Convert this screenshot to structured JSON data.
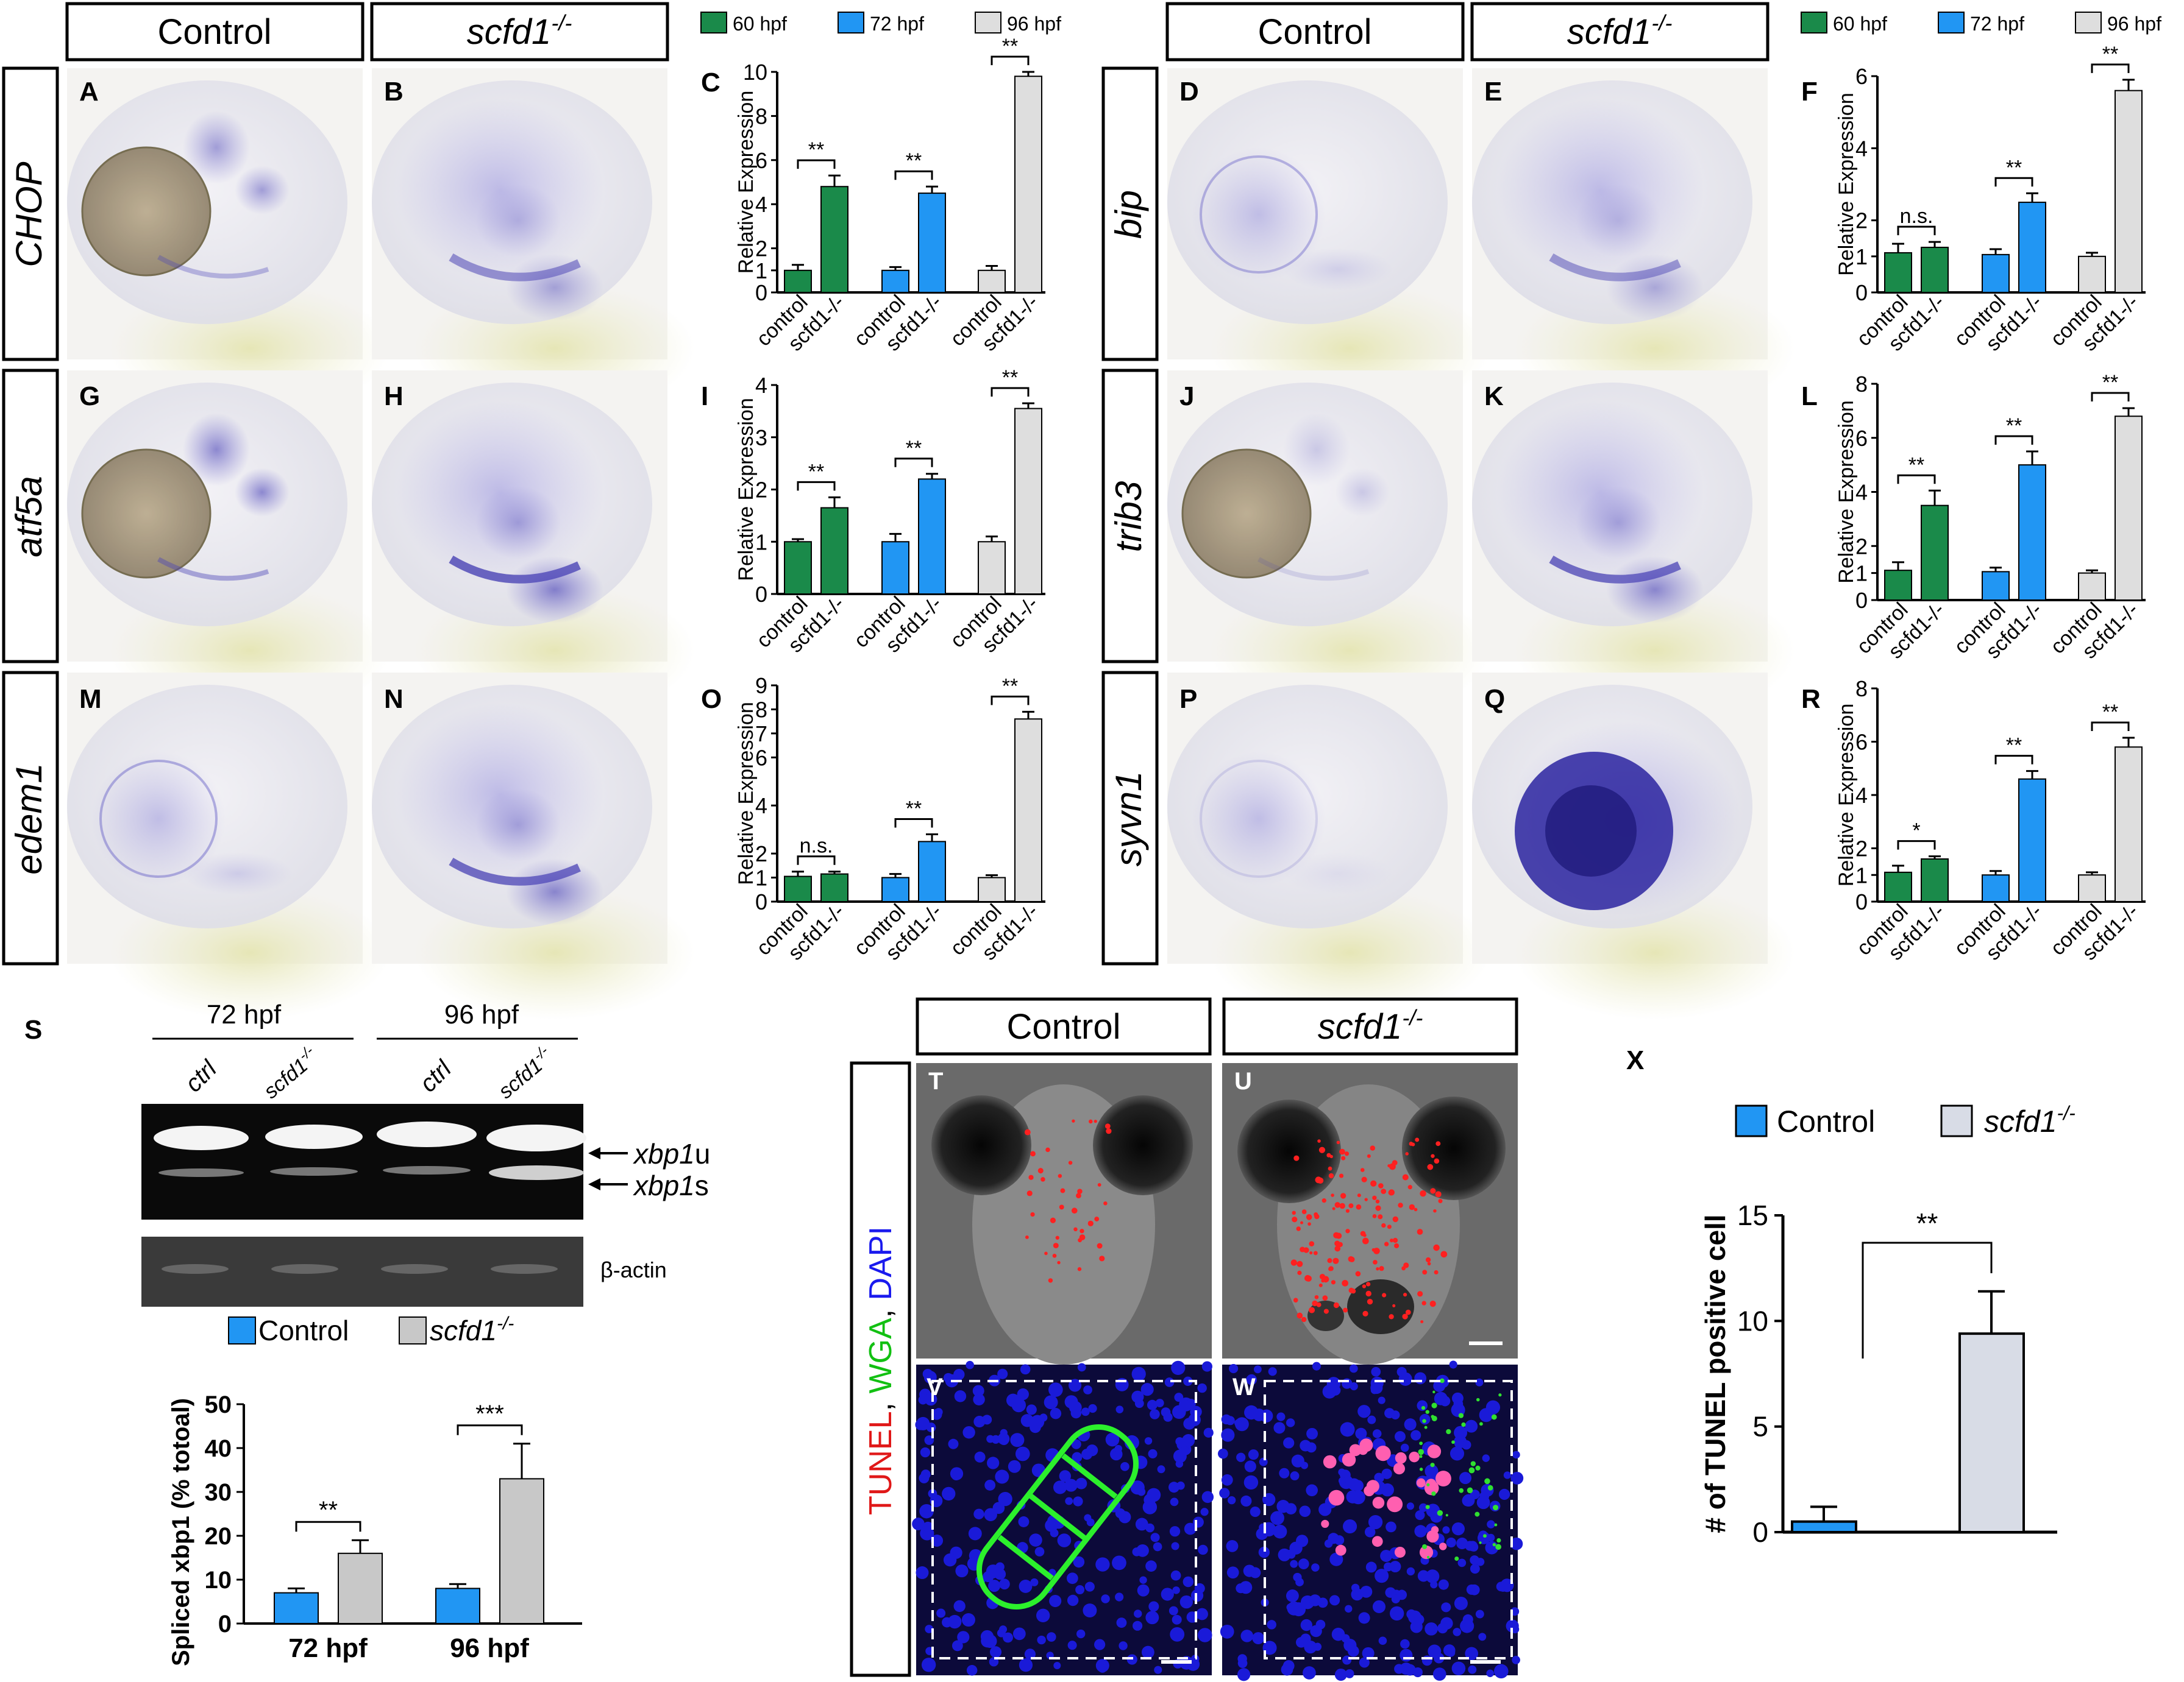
{
  "top_headers": {
    "control": "Control",
    "mutant": "scfd1",
    "sup": "-/-"
  },
  "legend_top": {
    "items": [
      {
        "label": "60 hpf",
        "color": "#1a8a4a"
      },
      {
        "label": "72 hpf",
        "color": "#2196f3"
      },
      {
        "label": "96 hpf",
        "color": "#dedede"
      }
    ]
  },
  "genes": {
    "chop": "CHOP",
    "bip": "bip",
    "atf5a": "atf5a",
    "trib3": "trib3",
    "edem1": "edem1",
    "syvn1": "syvn1"
  },
  "panel_letters": {
    "a": "A",
    "b": "B",
    "c": "C",
    "d": "D",
    "e": "E",
    "f": "F",
    "g": "G",
    "h": "H",
    "i": "I",
    "j": "J",
    "k": "K",
    "l": "L",
    "m": "M",
    "n": "N",
    "o": "O",
    "p": "P",
    "q": "Q",
    "r": "R",
    "s": "S",
    "t": "T",
    "u": "U",
    "v": "V",
    "w": "W",
    "x": "X"
  },
  "ylabel_rel": "Relative Expression",
  "xticks": [
    "control",
    "scfd1-/-",
    "control",
    "scfd1-/-",
    "control",
    "scfd1-/-"
  ],
  "gel": {
    "stage_72": "72 hpf",
    "stage_96": "96 hpf",
    "ctrl": "ctrl",
    "mutant": "scfd1",
    "sup": "-/-",
    "xbp1u": "xbp1",
    "xbp1u_suffix": "u",
    "xbp1s": "xbp1",
    "xbp1s_suffix": "s",
    "actin": "β-actin"
  },
  "legend_s": {
    "control": "Control",
    "mutant": "scfd1",
    "sup": "-/-"
  },
  "chart_data": [
    {
      "type": "bar",
      "panel": "C",
      "ylabel": "Relative Expression",
      "ylim": [
        0,
        10
      ],
      "yticks": [
        0,
        1,
        2,
        4,
        6,
        8,
        10
      ],
      "values": [
        1.0,
        4.8,
        1.0,
        4.5,
        1.0,
        9.8
      ],
      "errors": [
        0.25,
        0.5,
        0.15,
        0.3,
        0.2,
        0.2
      ],
      "significance": [
        "**",
        "**",
        "**"
      ]
    },
    {
      "type": "bar",
      "panel": "F",
      "ylabel": "Relative Expression",
      "ylim": [
        0,
        6
      ],
      "yticks": [
        0,
        1,
        2,
        4,
        6
      ],
      "values": [
        1.1,
        1.25,
        1.05,
        2.5,
        1.0,
        5.6
      ],
      "errors": [
        0.25,
        0.15,
        0.15,
        0.25,
        0.1,
        0.3
      ],
      "significance": [
        "n.s.",
        "**",
        "**"
      ]
    },
    {
      "type": "bar",
      "panel": "I",
      "ylabel": "Relative Expression",
      "ylim": [
        0,
        4
      ],
      "yticks": [
        0,
        1,
        2,
        3,
        4
      ],
      "values": [
        1.0,
        1.65,
        1.0,
        2.2,
        1.0,
        3.55
      ],
      "errors": [
        0.05,
        0.2,
        0.15,
        0.1,
        0.1,
        0.1
      ],
      "significance": [
        "**",
        "**",
        "**"
      ]
    },
    {
      "type": "bar",
      "panel": "L",
      "ylabel": "Relative Expression",
      "ylim": [
        0,
        8
      ],
      "yticks": [
        0,
        1,
        2,
        4,
        6,
        8
      ],
      "values": [
        1.1,
        3.5,
        1.05,
        5.0,
        1.0,
        6.8
      ],
      "errors": [
        0.3,
        0.55,
        0.15,
        0.5,
        0.1,
        0.3
      ],
      "significance": [
        "**",
        "**",
        "**"
      ]
    },
    {
      "type": "bar",
      "panel": "O",
      "ylabel": "Relative Expression",
      "ylim": [
        0,
        9
      ],
      "yticks": [
        0,
        1,
        2,
        4,
        6,
        7,
        8,
        9
      ],
      "values": [
        1.05,
        1.15,
        1.0,
        2.5,
        1.0,
        7.6
      ],
      "errors": [
        0.2,
        0.1,
        0.15,
        0.3,
        0.1,
        0.3
      ],
      "significance": [
        "n.s.",
        "**",
        "**"
      ]
    },
    {
      "type": "bar",
      "panel": "R",
      "ylabel": "Relative Expression",
      "ylim": [
        0,
        8
      ],
      "yticks": [
        0,
        1,
        2,
        4,
        6,
        8
      ],
      "values": [
        1.1,
        1.6,
        1.0,
        4.6,
        1.0,
        5.8
      ],
      "errors": [
        0.25,
        0.1,
        0.15,
        0.3,
        0.1,
        0.35
      ],
      "significance": [
        "*",
        "**",
        "**"
      ]
    },
    {
      "type": "bar",
      "panel": "S",
      "ylabel": "Spliced xbp1 (% totoal)",
      "ylim": [
        0,
        50
      ],
      "yticks": [
        0,
        10,
        20,
        30,
        40,
        50
      ],
      "categories": [
        "72 hpf",
        "96 hpf"
      ],
      "series": [
        {
          "name": "Control",
          "values": [
            7,
            8
          ],
          "errors": [
            1,
            1
          ]
        },
        {
          "name": "scfd1-/-",
          "values": [
            16,
            33
          ],
          "errors": [
            3,
            8
          ]
        }
      ],
      "significance": [
        "**",
        "***"
      ]
    },
    {
      "type": "bar",
      "panel": "X",
      "ylabel": "# of TUNEL positive cell",
      "ylim": [
        0,
        15
      ],
      "yticks": [
        0,
        5,
        10,
        15
      ],
      "series": [
        {
          "name": "Control",
          "values": [
            0.5
          ],
          "errors": [
            0.7
          ]
        },
        {
          "name": "scfd1-/-",
          "values": [
            9.4
          ],
          "errors": [
            2.0
          ]
        }
      ],
      "significance": [
        "**"
      ]
    }
  ],
  "tunel": {
    "tunel": "TUNEL",
    "wga": "WGA",
    "dapi": "DAPI",
    "sep": ", "
  },
  "legend_x": {
    "control": "Control",
    "mutant": "scfd1",
    "sup": "-/-"
  }
}
